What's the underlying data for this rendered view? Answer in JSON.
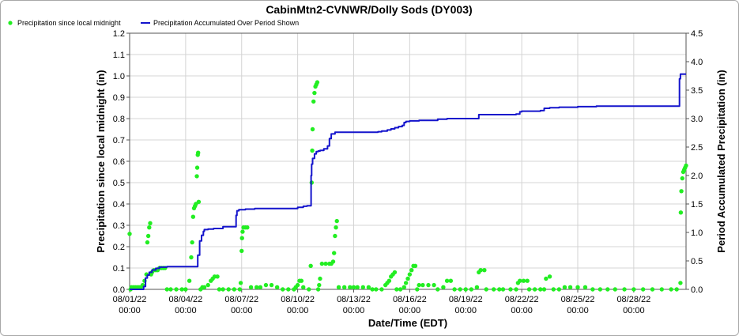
{
  "chart_data": {
    "type": "line",
    "title": "CabinMtn2-CVNWR/Dolly Sods (DY003)",
    "xlabel": "Date/Time (EDT)",
    "ylabel": "Precipitation since local midnight (in)",
    "y2label": "Period Accumulated Precipitation (in)",
    "ylim": [
      0,
      1.2
    ],
    "y2lim": [
      0,
      4.5
    ],
    "xlim_days": [
      0,
      29.8
    ],
    "grid": true,
    "legend_placement": "top-left",
    "x_ticks": [
      {
        "day": 0,
        "date": "08/01/22",
        "time": "00:00"
      },
      {
        "day": 3,
        "date": "08/04/22",
        "time": "00:00"
      },
      {
        "day": 6,
        "date": "08/07/22",
        "time": "00:00"
      },
      {
        "day": 9,
        "date": "08/10/22",
        "time": "00:00"
      },
      {
        "day": 12,
        "date": "08/13/22",
        "time": "00:00"
      },
      {
        "day": 15,
        "date": "08/16/22",
        "time": "00:00"
      },
      {
        "day": 18,
        "date": "08/19/22",
        "time": "00:00"
      },
      {
        "day": 21,
        "date": "08/22/22",
        "time": "00:00"
      },
      {
        "day": 24,
        "date": "08/25/22",
        "time": "00:00"
      },
      {
        "day": 27,
        "date": "08/28/22",
        "time": "00:00"
      }
    ],
    "y_ticks": [
      "0.0",
      "0.1",
      "0.2",
      "0.3",
      "0.4",
      "0.5",
      "0.6",
      "0.7",
      "0.8",
      "0.9",
      "1.0",
      "1.1",
      "1.2"
    ],
    "y2_ticks": [
      "0.0",
      "0.5",
      "1.0",
      "1.5",
      "2.0",
      "2.5",
      "3.0",
      "3.5",
      "4.0",
      "4.5"
    ],
    "series": [
      {
        "name": "Precipitation since local midnight",
        "axis": "left",
        "kind": "scatter",
        "color": "#22ee22",
        "points": [
          [
            0.0,
            0.26
          ],
          [
            0.05,
            0.0
          ],
          [
            0.1,
            0.01
          ],
          [
            0.2,
            0.01
          ],
          [
            0.3,
            0.01
          ],
          [
            0.4,
            0.01
          ],
          [
            0.5,
            0.01
          ],
          [
            0.6,
            0.01
          ],
          [
            0.7,
            0.02
          ],
          [
            0.8,
            0.04
          ],
          [
            0.9,
            0.07
          ],
          [
            0.95,
            0.22
          ],
          [
            1.0,
            0.25
          ],
          [
            1.05,
            0.29
          ],
          [
            1.1,
            0.31
          ],
          [
            1.15,
            0.07
          ],
          [
            1.2,
            0.08
          ],
          [
            1.3,
            0.09
          ],
          [
            1.4,
            0.09
          ],
          [
            1.5,
            0.09
          ],
          [
            1.6,
            0.1
          ],
          [
            1.7,
            0.1
          ],
          [
            1.8,
            0.1
          ],
          [
            1.9,
            0.1
          ],
          [
            2.0,
            0.0
          ],
          [
            2.2,
            0.0
          ],
          [
            2.5,
            0.0
          ],
          [
            2.8,
            0.0
          ],
          [
            3.0,
            0.0
          ],
          [
            3.2,
            0.04
          ],
          [
            3.3,
            0.15
          ],
          [
            3.35,
            0.22
          ],
          [
            3.4,
            0.34
          ],
          [
            3.45,
            0.38
          ],
          [
            3.5,
            0.39
          ],
          [
            3.55,
            0.4
          ],
          [
            3.6,
            0.53
          ],
          [
            3.62,
            0.57
          ],
          [
            3.65,
            0.63
          ],
          [
            3.67,
            0.64
          ],
          [
            3.7,
            0.41
          ],
          [
            3.8,
            0.0
          ],
          [
            3.9,
            0.01
          ],
          [
            4.0,
            0.01
          ],
          [
            4.2,
            0.02
          ],
          [
            4.35,
            0.04
          ],
          [
            4.45,
            0.05
          ],
          [
            4.55,
            0.06
          ],
          [
            4.7,
            0.06
          ],
          [
            4.8,
            0.0
          ],
          [
            5.0,
            0.0
          ],
          [
            5.3,
            0.0
          ],
          [
            5.6,
            0.0
          ],
          [
            5.9,
            0.0
          ],
          [
            5.95,
            0.03
          ],
          [
            6.0,
            0.18
          ],
          [
            6.02,
            0.24
          ],
          [
            6.05,
            0.27
          ],
          [
            6.1,
            0.29
          ],
          [
            6.2,
            0.29
          ],
          [
            6.3,
            0.29
          ],
          [
            6.5,
            0.01
          ],
          [
            6.8,
            0.01
          ],
          [
            7.0,
            0.01
          ],
          [
            7.3,
            0.02
          ],
          [
            7.6,
            0.02
          ],
          [
            7.9,
            0.01
          ],
          [
            8.2,
            0.0
          ],
          [
            8.5,
            0.0
          ],
          [
            8.8,
            0.0
          ],
          [
            8.9,
            0.01
          ],
          [
            9.0,
            0.02
          ],
          [
            9.1,
            0.04
          ],
          [
            9.2,
            0.04
          ],
          [
            9.3,
            0.01
          ],
          [
            9.6,
            0.0
          ],
          [
            9.7,
            0.11
          ],
          [
            9.75,
            0.5
          ],
          [
            9.78,
            0.65
          ],
          [
            9.8,
            0.75
          ],
          [
            9.85,
            0.88
          ],
          [
            9.9,
            0.92
          ],
          [
            9.95,
            0.95
          ],
          [
            10.0,
            0.96
          ],
          [
            10.05,
            0.97
          ],
          [
            10.1,
            0.0
          ],
          [
            10.15,
            0.02
          ],
          [
            10.2,
            0.05
          ],
          [
            10.3,
            0.12
          ],
          [
            10.5,
            0.12
          ],
          [
            10.7,
            0.12
          ],
          [
            10.8,
            0.12
          ],
          [
            10.9,
            0.13
          ],
          [
            10.95,
            0.17
          ],
          [
            11.0,
            0.25
          ],
          [
            11.05,
            0.29
          ],
          [
            11.1,
            0.32
          ],
          [
            11.2,
            0.01
          ],
          [
            11.5,
            0.01
          ],
          [
            11.8,
            0.01
          ],
          [
            12.0,
            0.01
          ],
          [
            12.2,
            0.01
          ],
          [
            12.5,
            0.01
          ],
          [
            12.8,
            0.01
          ],
          [
            13.0,
            0.0
          ],
          [
            13.2,
            0.0
          ],
          [
            13.5,
            0.0
          ],
          [
            13.7,
            0.02
          ],
          [
            13.8,
            0.03
          ],
          [
            13.9,
            0.04
          ],
          [
            14.0,
            0.06
          ],
          [
            14.1,
            0.07
          ],
          [
            14.2,
            0.08
          ],
          [
            14.3,
            0.0
          ],
          [
            14.5,
            0.0
          ],
          [
            14.7,
            0.01
          ],
          [
            14.8,
            0.03
          ],
          [
            14.9,
            0.05
          ],
          [
            15.0,
            0.07
          ],
          [
            15.1,
            0.09
          ],
          [
            15.2,
            0.11
          ],
          [
            15.3,
            0.11
          ],
          [
            15.4,
            0.0
          ],
          [
            15.5,
            0.02
          ],
          [
            15.7,
            0.02
          ],
          [
            16.0,
            0.02
          ],
          [
            16.3,
            0.02
          ],
          [
            16.5,
            0.0
          ],
          [
            16.8,
            0.01
          ],
          [
            17.0,
            0.04
          ],
          [
            17.2,
            0.04
          ],
          [
            17.4,
            0.0
          ],
          [
            17.7,
            0.0
          ],
          [
            18.0,
            0.0
          ],
          [
            18.3,
            0.0
          ],
          [
            18.6,
            0.01
          ],
          [
            18.7,
            0.08
          ],
          [
            18.8,
            0.09
          ],
          [
            19.0,
            0.09
          ],
          [
            19.1,
            0.0
          ],
          [
            19.5,
            0.0
          ],
          [
            19.8,
            0.0
          ],
          [
            20.0,
            0.0
          ],
          [
            20.4,
            0.0
          ],
          [
            20.7,
            0.0
          ],
          [
            20.8,
            0.03
          ],
          [
            20.9,
            0.04
          ],
          [
            21.1,
            0.04
          ],
          [
            21.3,
            0.04
          ],
          [
            21.4,
            0.0
          ],
          [
            21.7,
            0.0
          ],
          [
            22.0,
            0.0
          ],
          [
            22.2,
            0.0
          ],
          [
            22.3,
            0.05
          ],
          [
            22.5,
            0.06
          ],
          [
            22.7,
            0.0
          ],
          [
            23.0,
            0.0
          ],
          [
            23.3,
            0.01
          ],
          [
            23.6,
            0.01
          ],
          [
            24.0,
            0.01
          ],
          [
            24.4,
            0.01
          ],
          [
            24.8,
            0.0
          ],
          [
            25.2,
            0.0
          ],
          [
            25.6,
            0.0
          ],
          [
            26.0,
            0.0
          ],
          [
            26.5,
            0.0
          ],
          [
            27.0,
            0.0
          ],
          [
            27.5,
            0.0
          ],
          [
            28.0,
            0.0
          ],
          [
            28.5,
            0.0
          ],
          [
            29.0,
            0.0
          ],
          [
            29.3,
            0.0
          ],
          [
            29.5,
            0.03
          ],
          [
            29.52,
            0.36
          ],
          [
            29.55,
            0.46
          ],
          [
            29.6,
            0.52
          ],
          [
            29.65,
            0.55
          ],
          [
            29.7,
            0.56
          ],
          [
            29.75,
            0.57
          ],
          [
            29.8,
            0.58
          ]
        ]
      },
      {
        "name": "Precipitation Accumulated Over Period Shown",
        "axis": "right",
        "kind": "line",
        "color": "#1414cc",
        "points": [
          [
            0.0,
            0.0
          ],
          [
            0.6,
            0.0
          ],
          [
            0.75,
            0.05
          ],
          [
            0.85,
            0.2
          ],
          [
            0.95,
            0.25
          ],
          [
            1.05,
            0.3
          ],
          [
            1.2,
            0.34
          ],
          [
            1.4,
            0.37
          ],
          [
            1.6,
            0.39
          ],
          [
            2.0,
            0.4
          ],
          [
            2.5,
            0.4
          ],
          [
            3.0,
            0.4
          ],
          [
            3.5,
            0.4
          ],
          [
            3.6,
            0.4
          ],
          [
            3.65,
            0.6
          ],
          [
            3.75,
            0.85
          ],
          [
            3.85,
            0.95
          ],
          [
            3.95,
            1.02
          ],
          [
            4.0,
            1.05
          ],
          [
            4.2,
            1.06
          ],
          [
            4.5,
            1.07
          ],
          [
            5.0,
            1.1
          ],
          [
            5.3,
            1.1
          ],
          [
            5.5,
            1.1
          ],
          [
            5.65,
            1.1
          ],
          [
            5.7,
            1.3
          ],
          [
            5.75,
            1.38
          ],
          [
            5.85,
            1.4
          ],
          [
            6.2,
            1.41
          ],
          [
            6.5,
            1.41
          ],
          [
            6.7,
            1.42
          ],
          [
            7.0,
            1.42
          ],
          [
            7.5,
            1.42
          ],
          [
            8.0,
            1.42
          ],
          [
            8.5,
            1.42
          ],
          [
            9.0,
            1.44
          ],
          [
            9.3,
            1.46
          ],
          [
            9.5,
            1.47
          ],
          [
            9.68,
            1.47
          ],
          [
            9.72,
            2.0
          ],
          [
            9.75,
            2.2
          ],
          [
            9.8,
            2.3
          ],
          [
            9.9,
            2.38
          ],
          [
            10.0,
            2.42
          ],
          [
            10.1,
            2.43
          ],
          [
            10.2,
            2.44
          ],
          [
            10.4,
            2.47
          ],
          [
            10.6,
            2.52
          ],
          [
            10.7,
            2.65
          ],
          [
            10.8,
            2.73
          ],
          [
            11.0,
            2.76
          ],
          [
            11.5,
            2.76
          ],
          [
            12.0,
            2.76
          ],
          [
            12.5,
            2.76
          ],
          [
            13.0,
            2.76
          ],
          [
            13.3,
            2.77
          ],
          [
            13.5,
            2.78
          ],
          [
            13.8,
            2.8
          ],
          [
            14.0,
            2.82
          ],
          [
            14.2,
            2.84
          ],
          [
            14.4,
            2.86
          ],
          [
            14.6,
            2.88
          ],
          [
            14.7,
            2.93
          ],
          [
            14.8,
            2.95
          ],
          [
            15.0,
            2.96
          ],
          [
            15.5,
            2.97
          ],
          [
            16.0,
            2.97
          ],
          [
            16.5,
            2.99
          ],
          [
            17.0,
            3.0
          ],
          [
            17.5,
            3.0
          ],
          [
            18.0,
            3.0
          ],
          [
            18.5,
            3.0
          ],
          [
            18.7,
            3.07
          ],
          [
            19.0,
            3.07
          ],
          [
            19.5,
            3.07
          ],
          [
            20.0,
            3.07
          ],
          [
            20.7,
            3.08
          ],
          [
            20.9,
            3.12
          ],
          [
            21.0,
            3.13
          ],
          [
            21.5,
            3.13
          ],
          [
            22.0,
            3.14
          ],
          [
            22.2,
            3.18
          ],
          [
            22.5,
            3.19
          ],
          [
            23.0,
            3.2
          ],
          [
            24.0,
            3.21
          ],
          [
            25.0,
            3.22
          ],
          [
            26.0,
            3.22
          ],
          [
            27.0,
            3.22
          ],
          [
            28.0,
            3.22
          ],
          [
            29.0,
            3.22
          ],
          [
            29.4,
            3.22
          ],
          [
            29.45,
            3.7
          ],
          [
            29.5,
            3.78
          ],
          [
            29.8,
            3.78
          ]
        ]
      }
    ]
  }
}
